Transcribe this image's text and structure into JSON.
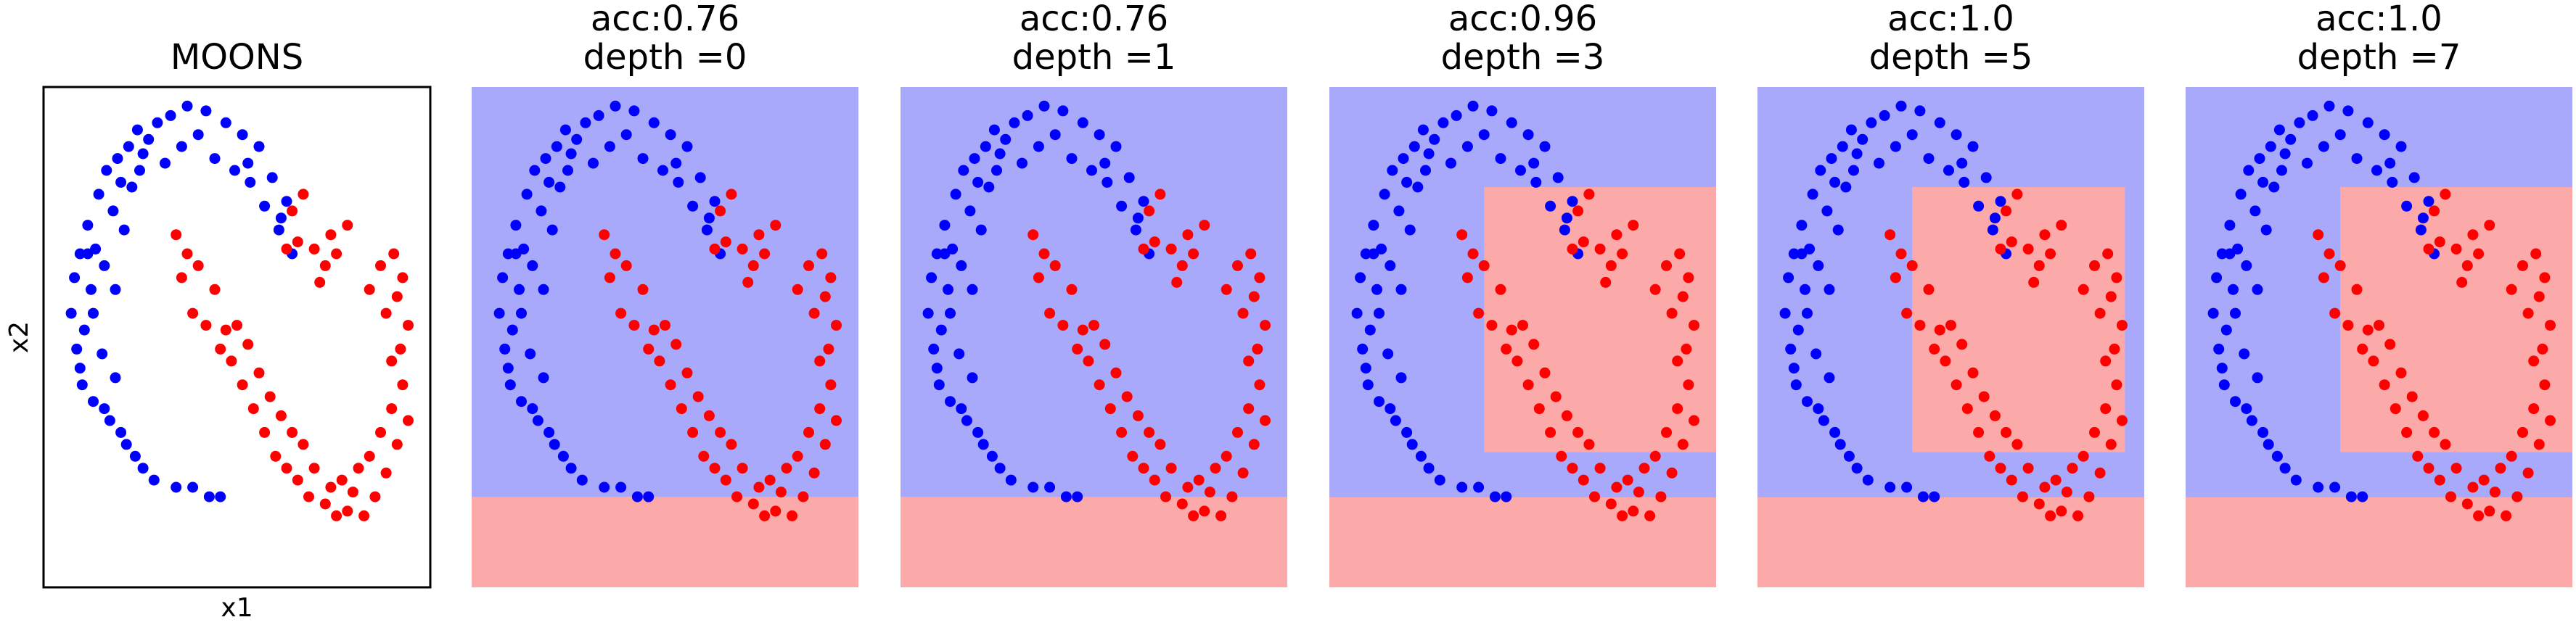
{
  "colors": {
    "class0": "#0000ff",
    "class1": "#ff0000",
    "region0": "#a9a9fc",
    "region1": "#fca9a9",
    "axes": "#000000"
  },
  "chart_data": [
    {
      "type": "scatter",
      "title": "MOONS",
      "xlabel": "x1",
      "ylabel": "x2",
      "xlim": [
        -1.25,
        2.25
      ],
      "ylim": [
        -0.8,
        1.3
      ],
      "ticks": "none",
      "series": [
        {
          "class": 0,
          "color": "#0000ff",
          "points": [
            [
              -1.0,
              0.35
            ],
            [
              -0.97,
              0.5
            ],
            [
              -0.95,
              0.2
            ],
            [
              -0.92,
              0.6
            ],
            [
              -0.9,
              0.05
            ],
            [
              -0.88,
              0.28
            ],
            [
              -0.85,
              0.72
            ],
            [
              -0.82,
              0.45
            ],
            [
              -0.8,
              -0.02
            ],
            [
              -0.78,
              0.62
            ],
            [
              -0.75,
              0.85
            ],
            [
              -0.72,
              0.18
            ],
            [
              -0.7,
              0.55
            ],
            [
              -0.68,
              0.95
            ],
            [
              -0.65,
              -0.1
            ],
            [
              -0.62,
              0.78
            ],
            [
              -0.6,
              0.08
            ],
            [
              -0.58,
              1.0
            ],
            [
              -0.55,
              0.9
            ],
            [
              -0.52,
              0.7
            ],
            [
              -0.5,
              -0.2
            ],
            [
              -0.48,
              1.05
            ],
            [
              -0.45,
              0.88
            ],
            [
              -0.42,
              -0.25
            ],
            [
              -0.4,
              1.12
            ],
            [
              -0.38,
              0.95
            ],
            [
              -0.35,
              -0.3
            ],
            [
              -0.3,
              1.08
            ],
            [
              -0.25,
              -0.35
            ],
            [
              -0.22,
              1.15
            ],
            [
              -0.15,
              0.98
            ],
            [
              -0.1,
              1.18
            ],
            [
              -0.05,
              -0.38
            ],
            [
              0.0,
              1.05
            ],
            [
              0.05,
              1.22
            ],
            [
              0.1,
              -0.38
            ],
            [
              0.15,
              1.1
            ],
            [
              0.22,
              1.2
            ],
            [
              0.3,
              1.0
            ],
            [
              0.35,
              -0.42
            ],
            [
              0.4,
              1.15
            ],
            [
              0.48,
              0.95
            ],
            [
              0.55,
              1.1
            ],
            [
              0.62,
              0.9
            ],
            [
              0.7,
              1.05
            ],
            [
              0.75,
              0.8
            ],
            [
              0.82,
              0.92
            ],
            [
              0.88,
              0.7
            ],
            [
              0.95,
              0.82
            ],
            [
              1.0,
              0.6
            ],
            [
              -0.92,
              0.12
            ],
            [
              -0.8,
              0.35
            ],
            [
              -0.7,
              -0.05
            ],
            [
              -0.6,
              0.45
            ],
            [
              -0.35,
              1.02
            ],
            [
              0.6,
              0.98
            ],
            [
              0.9,
              0.75
            ],
            [
              0.25,
              -0.42
            ],
            [
              -0.55,
              -0.15
            ],
            [
              -0.85,
              0.6
            ]
          ]
        },
        {
          "class": 1,
          "color": "#ff0000",
          "points": [
            [
              -0.05,
              0.68
            ],
            [
              0.0,
              0.5
            ],
            [
              0.05,
              0.6
            ],
            [
              0.1,
              0.35
            ],
            [
              0.15,
              0.55
            ],
            [
              0.22,
              0.3
            ],
            [
              0.3,
              0.45
            ],
            [
              0.35,
              0.2
            ],
            [
              0.4,
              0.28
            ],
            [
              0.45,
              0.15
            ],
            [
              0.5,
              0.3
            ],
            [
              0.55,
              0.05
            ],
            [
              0.6,
              0.22
            ],
            [
              0.65,
              -0.05
            ],
            [
              0.7,
              0.1
            ],
            [
              0.75,
              -0.15
            ],
            [
              0.8,
              0.0
            ],
            [
              0.85,
              -0.25
            ],
            [
              0.9,
              -0.08
            ],
            [
              0.95,
              -0.3
            ],
            [
              1.0,
              -0.15
            ],
            [
              1.05,
              -0.35
            ],
            [
              1.1,
              -0.2
            ],
            [
              1.15,
              -0.42
            ],
            [
              1.2,
              -0.3
            ],
            [
              1.3,
              -0.45
            ],
            [
              1.35,
              -0.38
            ],
            [
              1.4,
              -0.5
            ],
            [
              1.45,
              -0.35
            ],
            [
              1.5,
              -0.48
            ],
            [
              1.55,
              -0.4
            ],
            [
              1.6,
              -0.3
            ],
            [
              1.65,
              -0.5
            ],
            [
              1.7,
              -0.25
            ],
            [
              1.75,
              -0.42
            ],
            [
              1.8,
              -0.15
            ],
            [
              1.85,
              -0.32
            ],
            [
              1.9,
              -0.05
            ],
            [
              1.95,
              -0.2
            ],
            [
              2.0,
              0.05
            ],
            [
              2.05,
              -0.1
            ],
            [
              1.98,
              0.2
            ],
            [
              1.9,
              0.15
            ],
            [
              2.05,
              0.3
            ],
            [
              1.95,
              0.42
            ],
            [
              1.85,
              0.35
            ],
            [
              2.0,
              0.5
            ],
            [
              1.92,
              0.6
            ],
            [
              1.8,
              0.55
            ],
            [
              1.7,
              0.45
            ],
            [
              1.5,
              0.72
            ],
            [
              1.4,
              0.6
            ],
            [
              1.3,
              0.55
            ],
            [
              1.35,
              0.68
            ],
            [
              1.2,
              0.62
            ],
            [
              1.25,
              0.48
            ],
            [
              1.1,
              0.85
            ],
            [
              1.05,
              0.65
            ],
            [
              1.0,
              0.78
            ],
            [
              0.95,
              0.62
            ]
          ]
        }
      ]
    },
    {
      "type": "scatter",
      "title": "acc:0.76",
      "subtitle": "depth =0",
      "boundary": [
        [
          0,
          0,
          1,
          0.82,
          0
        ],
        [
          0,
          0.82,
          1,
          1,
          1
        ]
      ]
    },
    {
      "type": "scatter",
      "title": "acc:0.76",
      "subtitle": "depth =1",
      "boundary": [
        [
          0,
          0,
          1,
          0.82,
          0
        ],
        [
          0,
          0.82,
          1,
          1,
          1
        ]
      ]
    },
    {
      "type": "scatter",
      "title": "acc:0.96",
      "subtitle": "depth =3",
      "boundary": [
        [
          0,
          0,
          1,
          1,
          0
        ],
        [
          0.4,
          0.2,
          1,
          0.73,
          1
        ],
        [
          0,
          0.82,
          1,
          1,
          1
        ]
      ]
    },
    {
      "type": "scatter",
      "title": "acc:1.0",
      "subtitle": "depth =5",
      "boundary": [
        [
          0,
          0,
          1,
          1,
          0
        ],
        [
          0.4,
          0.2,
          0.95,
          0.73,
          1
        ],
        [
          0,
          0.82,
          1,
          1,
          1
        ]
      ]
    },
    {
      "type": "scatter",
      "title": "acc:1.0",
      "subtitle": "depth =7",
      "boundary": [
        [
          0,
          0,
          1,
          1,
          0
        ],
        [
          0.4,
          0.2,
          1,
          0.73,
          1
        ],
        [
          0,
          0.82,
          1,
          1,
          1
        ]
      ]
    }
  ]
}
